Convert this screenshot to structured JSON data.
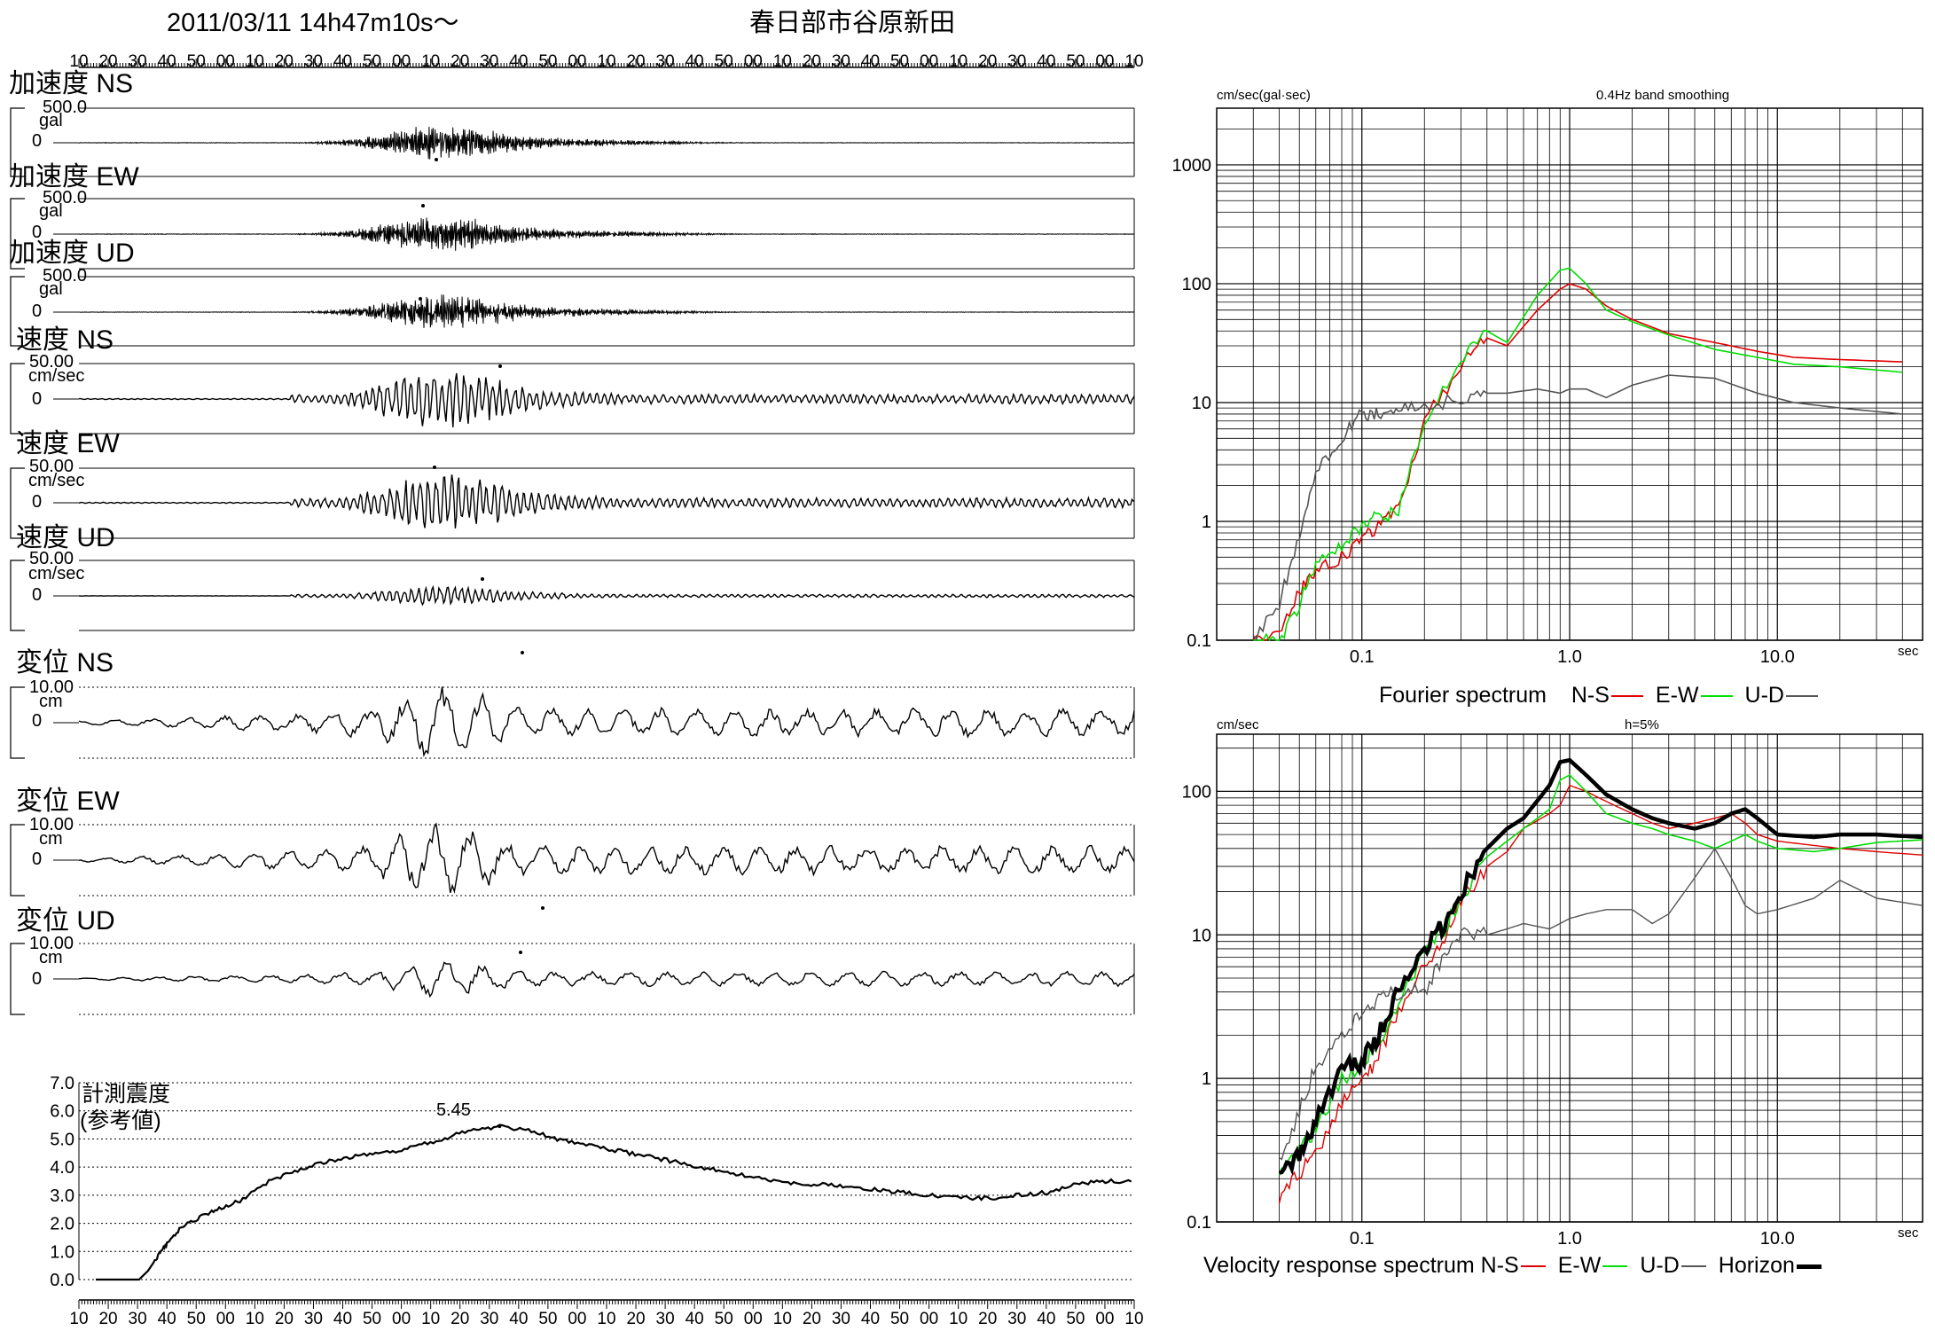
{
  "header": {
    "datetime": "2011/03/11  14h47m10s～",
    "station": "春日部市谷原新田"
  },
  "time_ticks": [
    "10",
    "20",
    "30",
    "40",
    "50",
    "00",
    "10",
    "20",
    "30",
    "40",
    "50",
    "00",
    "10",
    "20",
    "30",
    "40",
    "50",
    "00",
    "10",
    "20",
    "30",
    "40",
    "50",
    "00",
    "10",
    "20",
    "30",
    "40",
    "50",
    "00",
    "10",
    "20",
    "30",
    "40",
    "50",
    "00",
    "10"
  ],
  "waveforms": [
    {
      "id": "acc-ns",
      "label": "加速度 NS",
      "scale": "500.0",
      "unit": "gal",
      "zero": "0",
      "kind": "acc"
    },
    {
      "id": "acc-ew",
      "label": "加速度 EW",
      "scale": "500.0",
      "unit": "gal",
      "zero": "0",
      "kind": "acc"
    },
    {
      "id": "acc-ud",
      "label": "加速度 UD",
      "scale": "500.0",
      "unit": "gal",
      "zero": "0",
      "kind": "acc"
    },
    {
      "id": "vel-ns",
      "label": "速度 NS",
      "scale": "50.00",
      "unit": "cm/sec",
      "zero": "0",
      "kind": "vel"
    },
    {
      "id": "vel-ew",
      "label": "速度 EW",
      "scale": "50.00",
      "unit": "cm/sec",
      "zero": "0",
      "kind": "vel"
    },
    {
      "id": "vel-ud",
      "label": "速度 UD",
      "scale": "50.00",
      "unit": "cm/sec",
      "zero": "0",
      "kind": "vel"
    },
    {
      "id": "dis-ns",
      "label": "変位 NS",
      "scale": "10.00",
      "unit": "cm",
      "zero": "0",
      "kind": "dis"
    },
    {
      "id": "dis-ew",
      "label": "変位 EW",
      "scale": "10.00",
      "unit": "cm",
      "zero": "0",
      "kind": "dis"
    },
    {
      "id": "dis-ud",
      "label": "変位 UD",
      "scale": "10.00",
      "unit": "cm",
      "zero": "0",
      "kind": "dis"
    }
  ],
  "intensity": {
    "label_line1": "計測震度",
    "label_line2": "(参考値)",
    "peak_label": "5.45",
    "y_ticks": [
      "7.0",
      "6.0",
      "5.0",
      "4.0",
      "3.0",
      "2.0",
      "1.0",
      "0.0"
    ]
  },
  "fourier": {
    "unit": "cm/sec(gal·sec)",
    "note": "0.4Hz band smoothing",
    "x_ticks": [
      "0.1",
      "1.0",
      "10.0"
    ],
    "x_unit": "sec",
    "y_ticks": [
      "1000",
      "100",
      "10",
      "1",
      "0.1"
    ],
    "caption": "Fourier spectrum",
    "legend": [
      {
        "label": "N-S",
        "color": "#e00000"
      },
      {
        "label": "E-W",
        "color": "#00dd00"
      },
      {
        "label": "U-D",
        "color": "#555555"
      }
    ]
  },
  "response": {
    "unit": "cm/sec",
    "note": "h=5%",
    "x_ticks": [
      "0.1",
      "1.0",
      "10.0"
    ],
    "x_unit": "sec",
    "y_ticks": [
      "100",
      "10",
      "1",
      "0.1"
    ],
    "caption": "Velocity response spectrum",
    "legend": [
      {
        "label": "N-S",
        "color": "#e00000"
      },
      {
        "label": "E-W",
        "color": "#00dd00"
      },
      {
        "label": "U-D",
        "color": "#555555"
      },
      {
        "label": "Horizon",
        "color": "#000000"
      }
    ]
  },
  "chart_data": [
    {
      "type": "line",
      "title": "計測震度 (参考値)",
      "xlabel": "",
      "ylabel": "",
      "ylim": [
        0,
        7
      ],
      "peak": 5.45,
      "x_seconds": [
        0,
        15,
        18,
        22,
        25,
        30,
        36,
        42,
        50,
        60,
        70,
        80,
        90,
        100,
        110,
        120,
        130,
        140,
        150,
        160,
        170,
        180,
        190,
        200,
        210,
        220,
        230,
        240,
        250,
        260,
        270,
        280,
        290,
        300,
        310,
        320,
        330,
        340,
        350,
        360
      ],
      "values": [
        0.0,
        0.0,
        0.3,
        0.9,
        1.3,
        1.9,
        2.2,
        2.5,
        2.8,
        3.5,
        3.9,
        4.2,
        4.4,
        4.5,
        4.7,
        5.0,
        5.3,
        5.45,
        5.3,
        5.0,
        4.8,
        4.6,
        4.4,
        4.2,
        4.0,
        3.8,
        3.6,
        3.4,
        3.4,
        3.3,
        3.2,
        3.1,
        3.0,
        2.9,
        2.9,
        3.0,
        3.1,
        3.4,
        3.5,
        3.5
      ]
    },
    {
      "type": "line",
      "title": "Fourier spectrum",
      "xlabel": "sec",
      "ylabel": "cm/sec(gal·sec)",
      "xscale": "log",
      "yscale": "log",
      "xlim": [
        0.02,
        50
      ],
      "ylim": [
        0.1,
        3000
      ],
      "grid": true,
      "legend_placement": "bottom",
      "x": [
        0.03,
        0.04,
        0.05,
        0.06,
        0.08,
        0.1,
        0.12,
        0.15,
        0.2,
        0.3,
        0.4,
        0.5,
        0.7,
        0.9,
        1.0,
        1.2,
        1.5,
        2,
        3,
        5,
        8,
        12,
        20,
        40
      ],
      "series": [
        {
          "name": "N-S",
          "values": [
            0.1,
            0.12,
            0.25,
            0.4,
            0.5,
            0.7,
            0.9,
            1.3,
            7,
            20,
            35,
            30,
            60,
            90,
            100,
            90,
            65,
            50,
            38,
            32,
            27,
            24,
            23,
            22
          ]
        },
        {
          "name": "E-W",
          "values": [
            0.1,
            0.1,
            0.2,
            0.45,
            0.6,
            0.9,
            1.1,
            1.2,
            7,
            22,
            40,
            32,
            80,
            130,
            135,
            100,
            60,
            48,
            37,
            28,
            24,
            21,
            20,
            18
          ]
        },
        {
          "name": "U-D",
          "values": [
            0.1,
            0.2,
            0.8,
            2.5,
            5,
            8,
            8,
            9,
            9,
            11,
            12,
            12,
            13,
            12,
            13,
            13,
            11,
            14,
            17,
            16,
            12,
            10,
            9,
            8
          ]
        }
      ]
    },
    {
      "type": "line",
      "title": "Velocity response spectrum",
      "xlabel": "sec",
      "ylabel": "cm/sec",
      "xscale": "log",
      "yscale": "log",
      "xlim": [
        0.02,
        50
      ],
      "ylim": [
        0.1,
        250
      ],
      "grid": true,
      "legend_placement": "bottom",
      "x": [
        0.04,
        0.05,
        0.06,
        0.08,
        0.1,
        0.12,
        0.15,
        0.2,
        0.25,
        0.3,
        0.4,
        0.5,
        0.6,
        0.8,
        0.9,
        1.0,
        1.2,
        1.5,
        2,
        2.5,
        3,
        4,
        5,
        6,
        7,
        8,
        10,
        15,
        20,
        30,
        50
      ],
      "series": [
        {
          "name": "N-S",
          "values": [
            0.15,
            0.22,
            0.3,
            0.7,
            0.9,
            1.5,
            2.8,
            6,
            10,
            17,
            30,
            38,
            55,
            70,
            80,
            110,
            100,
            85,
            70,
            60,
            55,
            60,
            65,
            70,
            60,
            50,
            45,
            42,
            40,
            38,
            36
          ]
        },
        {
          "name": "E-W",
          "values": [
            0.2,
            0.3,
            0.45,
            1.0,
            1.2,
            1.8,
            3.5,
            7,
            11,
            18,
            35,
            45,
            55,
            75,
            120,
            130,
            100,
            70,
            60,
            55,
            50,
            45,
            40,
            45,
            50,
            45,
            40,
            38,
            40,
            44,
            46
          ]
        },
        {
          "name": "U-D",
          "values": [
            0.25,
            0.6,
            1.2,
            2,
            3,
            3.5,
            4,
            4,
            7,
            10,
            10,
            11,
            12,
            11,
            12,
            13,
            14,
            15,
            15,
            12,
            14,
            25,
            40,
            25,
            16,
            14,
            15,
            18,
            24,
            18,
            16
          ]
        },
        {
          "name": "Horizon",
          "values": [
            0.2,
            0.3,
            0.5,
            1.2,
            1.3,
            2,
            4,
            8,
            12,
            20,
            40,
            55,
            65,
            110,
            160,
            165,
            130,
            95,
            75,
            65,
            60,
            55,
            60,
            70,
            75,
            65,
            50,
            48,
            50,
            50,
            48
          ]
        }
      ]
    }
  ]
}
